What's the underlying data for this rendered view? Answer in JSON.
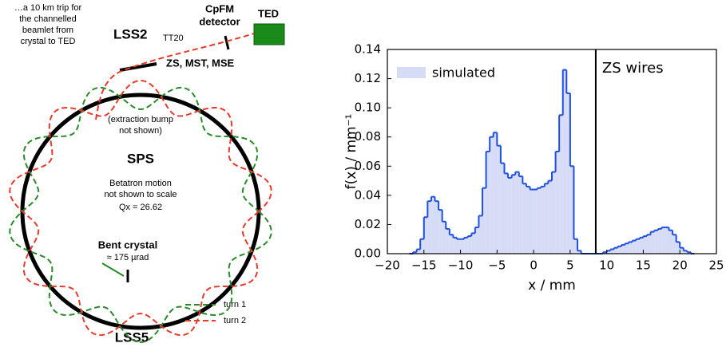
{
  "diagram": {
    "note": [
      "…a 10 km trip for",
      "the channelled",
      "beamlet from",
      "crystal to TED"
    ],
    "lss2": "LSS2",
    "tt20": "TT20",
    "cpfm": [
      "CpFM",
      "detector"
    ],
    "ted": "TED",
    "septa": "ZS, MST, MSE",
    "bump": [
      "(extraction bump",
      "not shown)"
    ],
    "sps": "SPS",
    "betatron": [
      "Betatron motion",
      "not shown to scale"
    ],
    "tune": "Qx = 26.62",
    "crystal": "Bent crystal",
    "angle": "≈ 175 µrad",
    "turn1": "turn 1",
    "turn2": "turn 2",
    "lss5": "LSS5"
  },
  "chart_data": {
    "type": "histogram",
    "xlabel": "x / mm",
    "ylabel": "f(x) / mm⁻¹",
    "legend": "upper left",
    "series_name": "simulated",
    "color": "#1f4fe0",
    "fill": "#d7dcf6",
    "annotation": {
      "text": "ZS wires",
      "x": 8.5
    },
    "xlim": [
      -20,
      25
    ],
    "ylim": [
      0,
      0.14
    ],
    "xticks": [
      {
        "value": -20,
        "label": "−20"
      },
      {
        "value": -15,
        "label": "−15"
      },
      {
        "value": -10,
        "label": "−10"
      },
      {
        "value": -5,
        "label": "−5"
      },
      0,
      5,
      10,
      15,
      20,
      25
    ],
    "yticks": [
      {
        "value": 0,
        "label": "0.00"
      },
      {
        "value": 0.02,
        "label": "0.02"
      },
      {
        "value": 0.04,
        "label": "0.04"
      },
      {
        "value": 0.06,
        "label": "0.06"
      },
      {
        "value": 0.08,
        "label": "0.08"
      },
      {
        "value": 0.1,
        "label": "0.10"
      },
      {
        "value": 0.12,
        "label": "0.12"
      },
      {
        "value": 0.14,
        "label": "0.14"
      }
    ],
    "bins": [
      -17,
      -16.5,
      -16,
      -15.5,
      -15,
      -14.5,
      -14,
      -13.5,
      -13,
      -12.5,
      -12,
      -11.5,
      -11,
      -10.5,
      -10,
      -9.5,
      -9,
      -8.5,
      -8,
      -7.5,
      -7,
      -6.5,
      -6,
      -5.5,
      -5,
      -4.5,
      -4,
      -3.5,
      -3,
      -2.5,
      -2,
      -1.5,
      -1,
      -0.5,
      0,
      0.5,
      1,
      1.5,
      2,
      2.5,
      3,
      3.5,
      4,
      4.5,
      5,
      5.5,
      6,
      6.5,
      7,
      7.5,
      8,
      8.5,
      9,
      9.5,
      10,
      10.5,
      11,
      11.5,
      12,
      12.5,
      13,
      13.5,
      14,
      14.5,
      15,
      15.5,
      16,
      16.5,
      17,
      17.5,
      18,
      18.5,
      19,
      19.5,
      20,
      20.5,
      21,
      21.5,
      22
    ],
    "counts": [
      0,
      0.001,
      0.003,
      0.01,
      0.025,
      0.036,
      0.039,
      0.036,
      0.03,
      0.022,
      0.017,
      0.013,
      0.011,
      0.01,
      0.01,
      0.011,
      0.012,
      0.014,
      0.018,
      0.026,
      0.045,
      0.07,
      0.08,
      0.083,
      0.074,
      0.062,
      0.055,
      0.052,
      0.054,
      0.056,
      0.053,
      0.048,
      0.046,
      0.044,
      0.044,
      0.045,
      0.046,
      0.048,
      0.05,
      0.056,
      0.07,
      0.095,
      0.126,
      0.11,
      0.06,
      0.01,
      0.002,
      0,
      0,
      0,
      0,
      0,
      0,
      0.001,
      0.002,
      0.003,
      0.004,
      0.005,
      0.006,
      0.007,
      0.008,
      0.009,
      0.01,
      0.011,
      0.012,
      0.013,
      0.015,
      0.016,
      0.017,
      0.018,
      0.018,
      0.016,
      0.013,
      0.008,
      0.004,
      0.002,
      0.001,
      0
    ]
  }
}
